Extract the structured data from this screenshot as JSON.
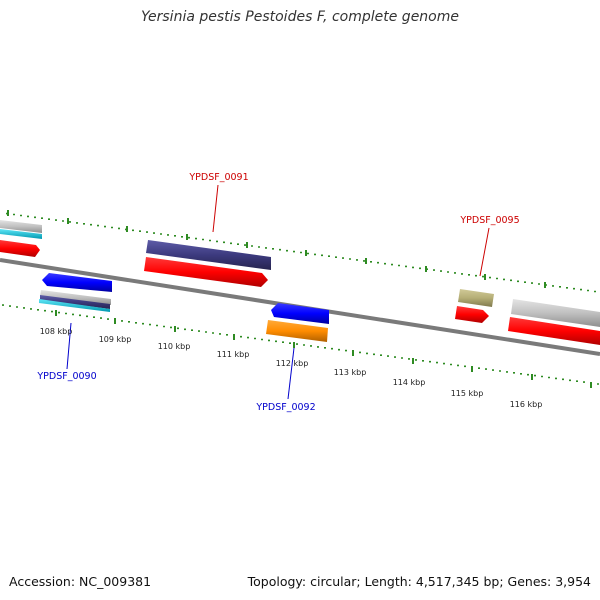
{
  "title": "Yersinia pestis Pestoides F, complete genome",
  "footer": {
    "accession": "Accession: NC_009381",
    "summary": "Topology: circular; Length: 4,517,345 bp; Genes: 3,954"
  },
  "scale_labels": [
    "108 kbp",
    "109 kbp",
    "110 kbp",
    "111 kbp",
    "112 kbp",
    "113 kbp",
    "114 kbp",
    "115 kbp",
    "116 kbp"
  ],
  "gene_labels": [
    {
      "text": "YPDSF_0091",
      "color": "#cc0000"
    },
    {
      "text": "YPDSF_0095",
      "color": "#cc0000"
    },
    {
      "text": "YPDSF_0090",
      "color": "#0000cc"
    },
    {
      "text": "YPDSF_0092",
      "color": "#0000cc"
    }
  ],
  "colors": {
    "backbone": "#7a7a7a",
    "ticks": "#2e8b22",
    "cds": "#ff0000",
    "blue_gene": "#0000ff",
    "purple_gene": "#3c3a7e",
    "orange_gene": "#ff8c00",
    "gray_gene": "#c0c0c0",
    "khaki_gene": "#b5ae76",
    "cyan_gene": "#00c8e0",
    "label_forward": "#cc0000",
    "label_reverse": "#0000cc"
  }
}
